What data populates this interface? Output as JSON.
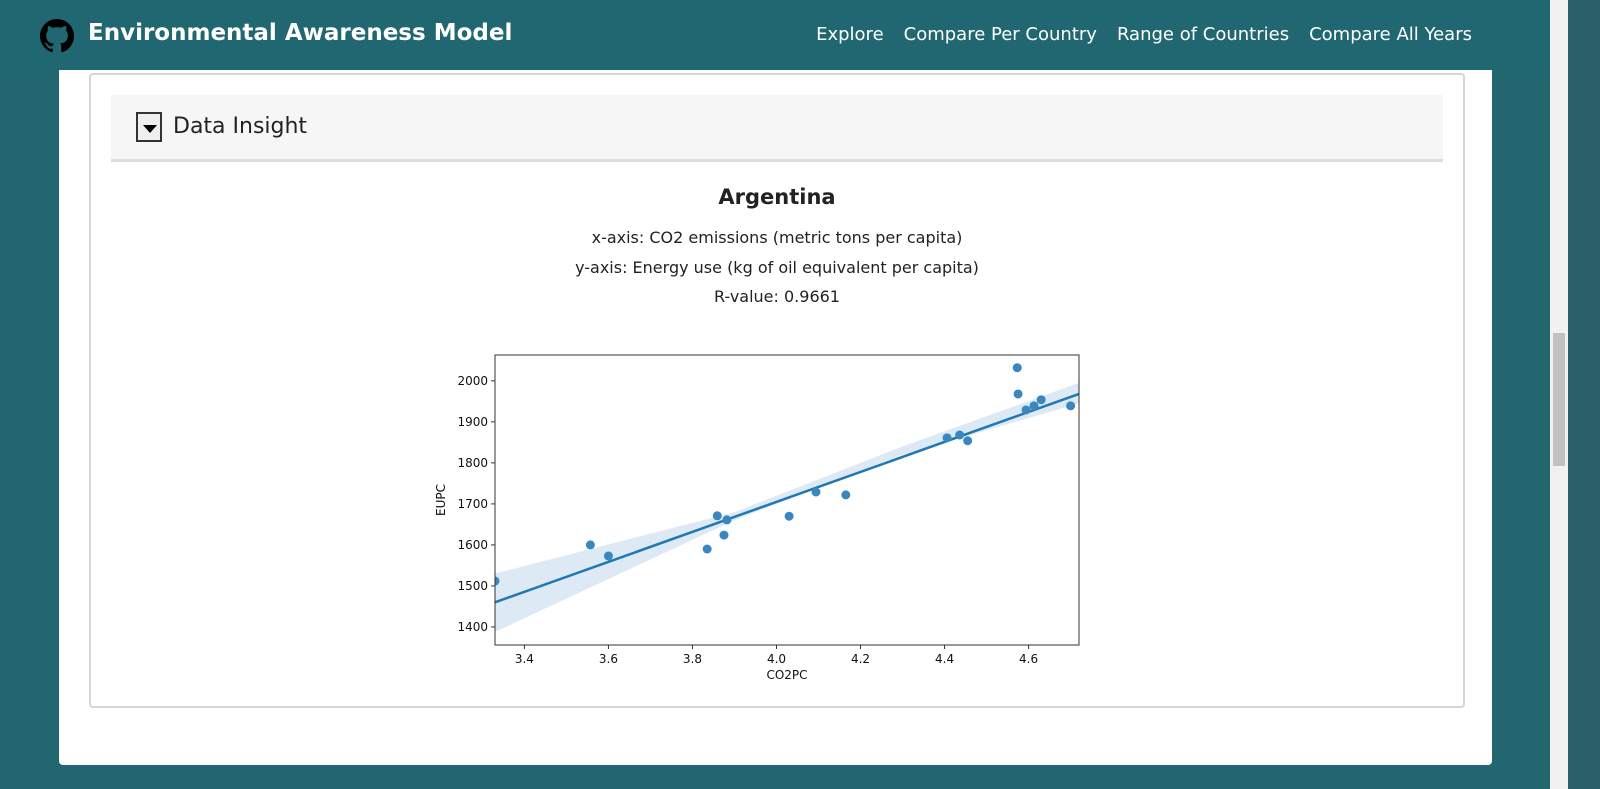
{
  "header": {
    "title": "Environmental Awareness Model",
    "logo_icon": "github-icon",
    "nav": [
      "Explore",
      "Compare Per Country",
      "Range of Countries",
      "Compare All Years"
    ]
  },
  "card": {
    "title": "Data Insight",
    "toggle_icon": "caret-down-icon"
  },
  "insight": {
    "country": "Argentina",
    "x_axis": "x-axis: CO2 emissions (metric tons per capita)",
    "y_axis": "y-axis: Energy use (kg of oil equivalent per capita)",
    "r_value": "R-value: 0.9661"
  },
  "chart_data": {
    "type": "scatter",
    "xlabel": "CO2PC",
    "ylabel": "EUPC",
    "xlim": [
      3.33,
      4.72
    ],
    "ylim": [
      1356,
      2063
    ],
    "xticks": [
      3.4,
      3.6,
      3.8,
      4.0,
      4.2,
      4.4,
      4.6
    ],
    "yticks": [
      1400,
      1500,
      1600,
      1700,
      1800,
      1900,
      2000
    ],
    "points": [
      [
        3.33,
        1512
      ],
      [
        3.557,
        1600
      ],
      [
        3.6,
        1573
      ],
      [
        3.835,
        1590
      ],
      [
        3.859,
        1671
      ],
      [
        3.875,
        1624
      ],
      [
        3.882,
        1661
      ],
      [
        4.03,
        1670
      ],
      [
        4.094,
        1729
      ],
      [
        4.165,
        1722
      ],
      [
        4.406,
        1861
      ],
      [
        4.436,
        1868
      ],
      [
        4.455,
        1854
      ],
      [
        4.573,
        2032
      ],
      [
        4.575,
        1968
      ],
      [
        4.594,
        1929
      ],
      [
        4.613,
        1939
      ],
      [
        4.63,
        1954
      ],
      [
        4.7,
        1939
      ]
    ],
    "regression": {
      "x": [
        3.33,
        4.72
      ],
      "y": [
        1460,
        1968
      ]
    },
    "ci_band": {
      "x": [
        3.33,
        3.9,
        4.3,
        4.72
      ],
      "lower": [
        1388,
        1660,
        1820,
        1945
      ],
      "upper": [
        1530,
        1680,
        1840,
        1995
      ]
    },
    "colors": {
      "points": "#3a86bf",
      "line": "#1f77b4",
      "band": "#dde9f4"
    },
    "grid": false
  }
}
